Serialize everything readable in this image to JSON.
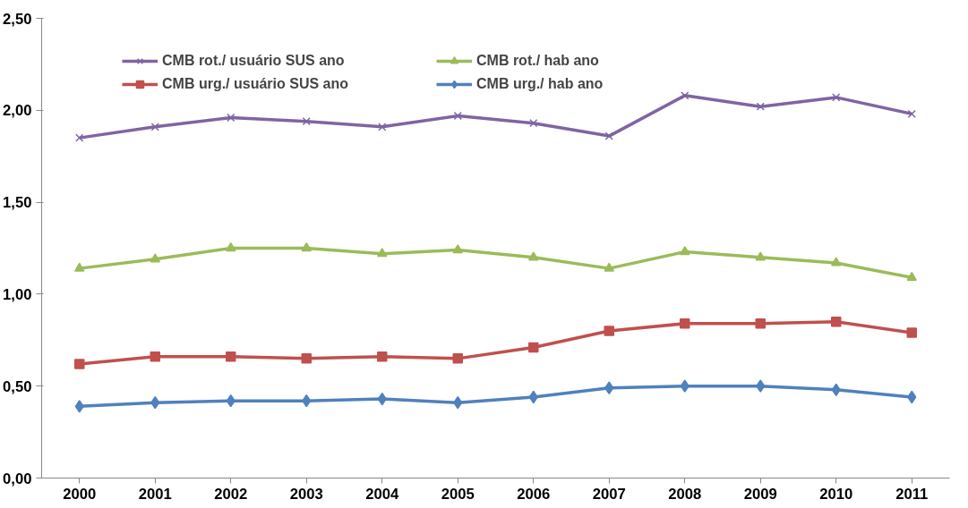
{
  "chart_data": {
    "type": "line",
    "categories": [
      "2000",
      "2001",
      "2002",
      "2003",
      "2004",
      "2005",
      "2006",
      "2007",
      "2008",
      "2009",
      "2010",
      "2011"
    ],
    "series": [
      {
        "name": "CMB rot./ usuário SUS ano",
        "color": "#8064a2",
        "marker": "cross",
        "values": [
          1.85,
          1.91,
          1.96,
          1.94,
          1.91,
          1.97,
          1.93,
          1.86,
          2.08,
          2.02,
          2.07,
          1.98
        ]
      },
      {
        "name": "CMB rot./ hab ano",
        "color": "#9bbb59",
        "marker": "triangle",
        "values": [
          1.14,
          1.19,
          1.25,
          1.25,
          1.22,
          1.24,
          1.2,
          1.14,
          1.23,
          1.2,
          1.17,
          1.09
        ]
      },
      {
        "name": "CMB urg./ usuário SUS ano",
        "color": "#c0504d",
        "marker": "square",
        "values": [
          0.62,
          0.66,
          0.66,
          0.65,
          0.66,
          0.65,
          0.71,
          0.8,
          0.84,
          0.84,
          0.85,
          0.79
        ]
      },
      {
        "name": "CMB urg./ hab ano",
        "color": "#4f81bd",
        "marker": "diamond",
        "values": [
          0.39,
          0.41,
          0.42,
          0.42,
          0.43,
          0.41,
          0.44,
          0.49,
          0.5,
          0.5,
          0.48,
          0.44
        ]
      }
    ],
    "ylim": [
      0,
      2.5
    ],
    "yticks": [
      {
        "value": 0,
        "label": "0,00"
      },
      {
        "value": 0.5,
        "label": "0,50"
      },
      {
        "value": 1,
        "label": "1,00"
      },
      {
        "value": 1.5,
        "label": "1,50"
      },
      {
        "value": 2,
        "label": "2,00"
      },
      {
        "value": 2.5,
        "label": "2,50"
      }
    ],
    "grid": false,
    "legend": "top",
    "line_style": "solid"
  }
}
